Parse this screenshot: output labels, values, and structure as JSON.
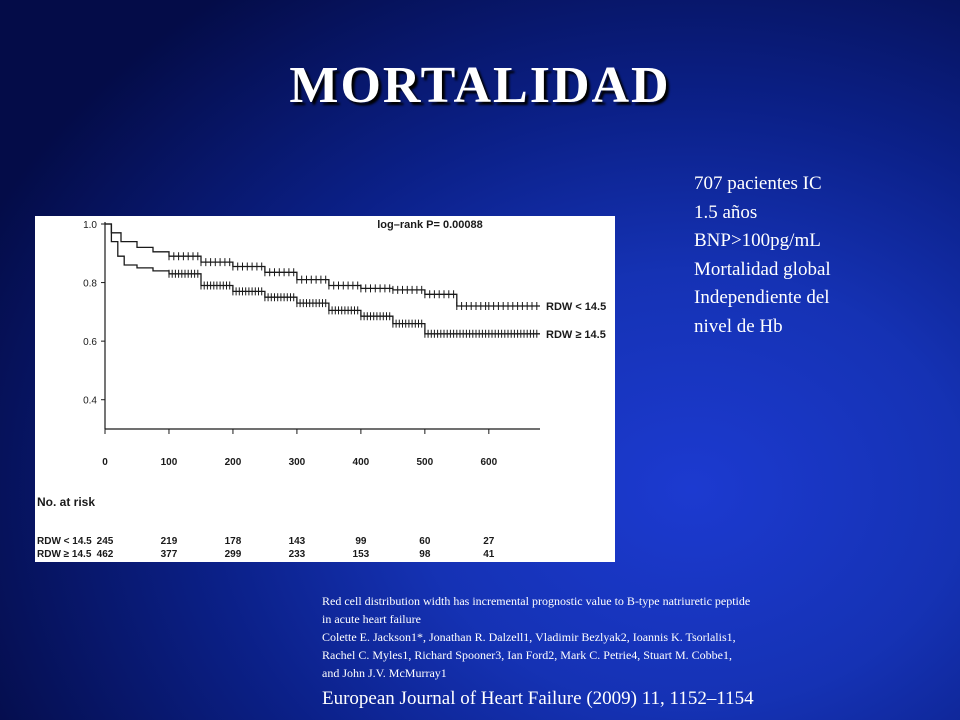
{
  "slide": {
    "title": "MORTALIDAD",
    "side_notes": [
      "707 pacientes IC",
      "1.5 años",
      "BNP>100pg/mL",
      "Mortalidad global",
      "Independiente del",
      "nivel de Hb"
    ],
    "reference_lines": [
      "Red cell distribution width has incremental prognostic value to B-type natriuretic peptide",
      "in acute heart failure",
      "Colette E. Jackson1*, Jonathan R. Dalzell1, Vladimir Bezlyak2, Ioannis K. Tsorlalis1,",
      "Rachel C. Myles1, Richard Spooner3, Ian Ford2, Mark C. Petrie4, Stuart M. Cobbe1,",
      "and John J.V. McMurray1"
    ],
    "journal": "European Journal of Heart Failure (2009) 11, 1152–1154"
  },
  "chart_data": {
    "type": "line",
    "subtype": "kaplan-meier",
    "annotation": "log–rank P= 0.00088",
    "xlim": [
      0,
      680
    ],
    "ylim": [
      0.3,
      1.0
    ],
    "x_ticks": [
      "0",
      "100",
      "200",
      "300",
      "400",
      "500",
      "600"
    ],
    "x_tick_values": [
      0,
      100,
      200,
      300,
      400,
      500,
      600
    ],
    "y_ticks": [
      "1.0",
      "0.8",
      "0.6",
      "0.4"
    ],
    "y_tick_values": [
      1.0,
      0.8,
      0.6,
      0.4
    ],
    "legend_placement": "right-end-of-lines",
    "grid": false,
    "series": [
      {
        "name": "RDW < 14.5",
        "label_text": "RDW < 14.5",
        "x": [
          0,
          10,
          25,
          50,
          75,
          100,
          150,
          200,
          250,
          300,
          350,
          400,
          450,
          500,
          550,
          600,
          680
        ],
        "y": [
          1.0,
          0.97,
          0.94,
          0.92,
          0.905,
          0.89,
          0.87,
          0.855,
          0.835,
          0.81,
          0.79,
          0.78,
          0.775,
          0.76,
          0.72,
          0.72,
          0.72
        ]
      },
      {
        "name": "RDW ≥ 14.5",
        "label_text": "RDW ≥ 14.5",
        "x": [
          0,
          10,
          20,
          30,
          50,
          75,
          100,
          150,
          200,
          250,
          300,
          350,
          400,
          450,
          500,
          550,
          600,
          680
        ],
        "y": [
          1.0,
          0.94,
          0.89,
          0.86,
          0.85,
          0.84,
          0.83,
          0.79,
          0.77,
          0.75,
          0.73,
          0.705,
          0.685,
          0.66,
          0.625,
          0.625,
          0.625,
          0.625
        ]
      }
    ],
    "at_risk": {
      "header": "No. at risk",
      "rows": [
        {
          "label": "RDW < 14.5",
          "values": [
            "245",
            "219",
            "178",
            "143",
            "99",
            "60",
            "27"
          ]
        },
        {
          "label": "RDW ≥ 14.5",
          "values": [
            "462",
            "377",
            "299",
            "233",
            "153",
            "98",
            "41"
          ]
        }
      ]
    }
  },
  "colors": {
    "background_dark": "#040c48",
    "background_light": "#1c3ad0",
    "text": "#ffffff",
    "chart_ink": "#1a1a1a"
  }
}
